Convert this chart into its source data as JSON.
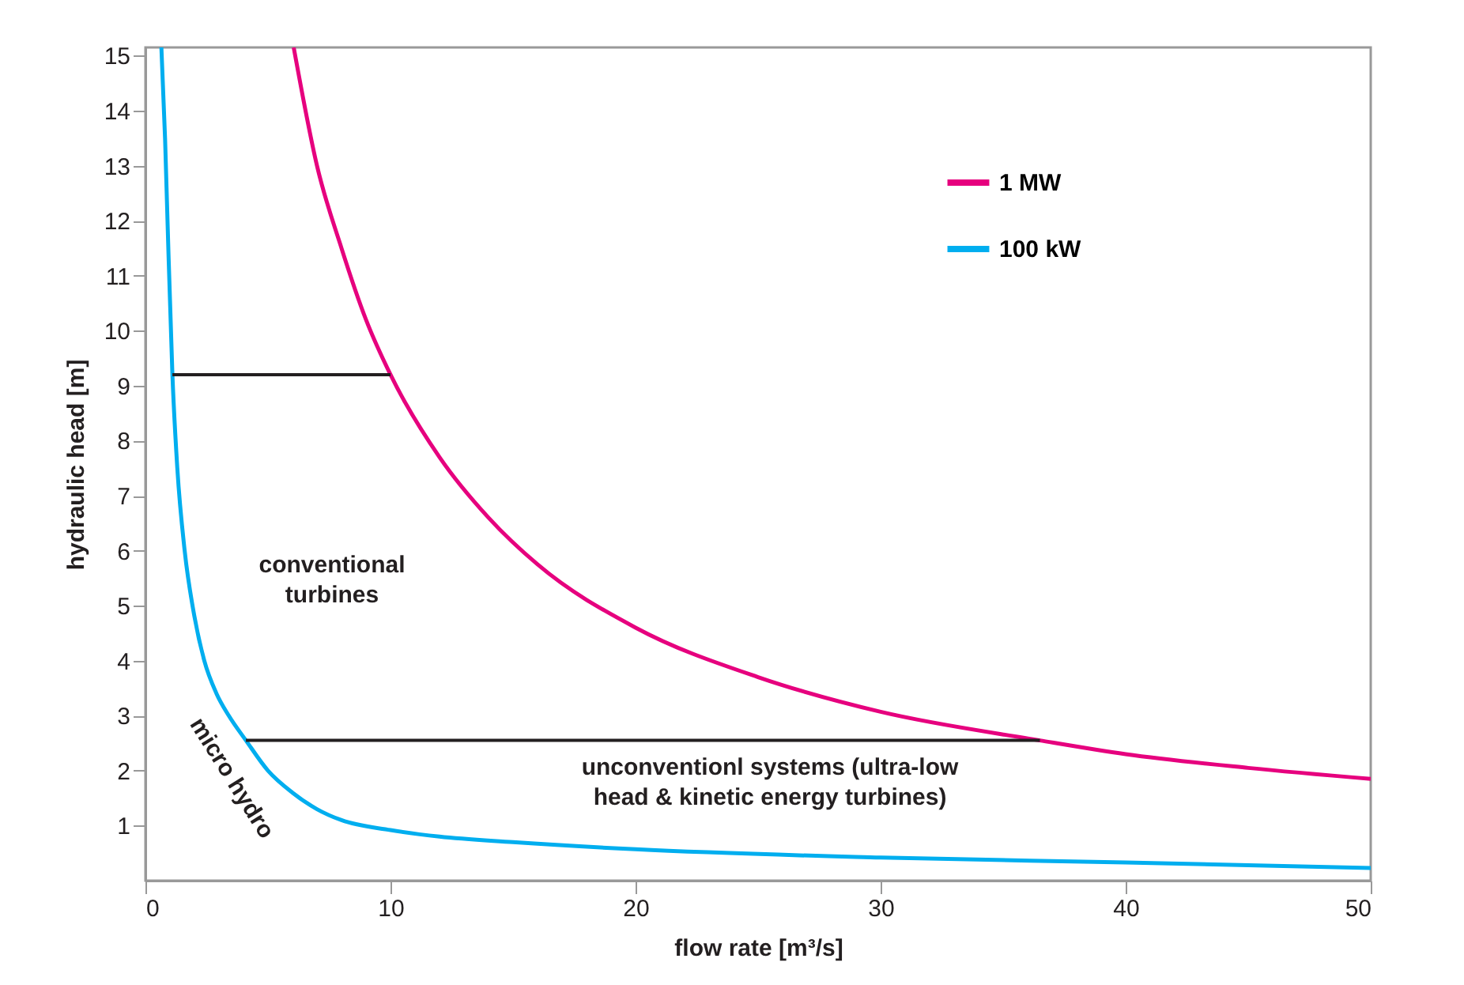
{
  "chart_data": {
    "type": "line",
    "xlabel": "flow rate [m³/s]",
    "ylabel": "hydraulic head [m]",
    "xlim": [
      0,
      50
    ],
    "ylim": [
      0,
      15.15
    ],
    "xticks": [
      0,
      10,
      20,
      30,
      40,
      50
    ],
    "yticks": [
      1,
      2,
      3,
      4,
      5,
      6,
      7,
      8,
      9,
      10,
      11,
      12,
      13,
      14,
      15
    ],
    "grid": false,
    "legend": "top right",
    "marker": "none",
    "line_style": "solid",
    "series": [
      {
        "name": "1 MW",
        "color": "#e6007e",
        "x": [
          6.05,
          7,
          8,
          9,
          10,
          12,
          14,
          16,
          20,
          25,
          30,
          36.5,
          40,
          45,
          50
        ],
        "values": [
          15.15,
          13,
          11.5,
          10.2,
          9.2,
          7.7,
          6.6,
          5.75,
          4.6,
          3.7,
          3.07,
          2.55,
          2.3,
          2.05,
          1.85
        ]
      },
      {
        "name": "100 kW",
        "color": "#00aeef",
        "x": [
          0.65,
          0.8,
          0.9,
          1.1,
          1.3,
          1.6,
          2,
          2.4,
          2.9,
          3.4,
          4.1,
          5,
          6,
          7,
          8,
          10,
          12,
          15,
          20,
          30,
          40,
          50
        ],
        "values": [
          15.15,
          13.5,
          12,
          9.2,
          7.5,
          6,
          4.8,
          4,
          3.4,
          3,
          2.55,
          2,
          1.6,
          1.3,
          1.1,
          0.92,
          0.8,
          0.7,
          0.57,
          0.42,
          0.33,
          0.23
        ]
      },
      {
        "color": "#231f20",
        "x": [
          1.1,
          10
        ],
        "values": [
          9.2,
          9.2
        ]
      },
      {
        "color": "#231f20",
        "x": [
          4.1,
          36.5
        ],
        "values": [
          2.55,
          2.55
        ]
      }
    ],
    "annotations": [
      "conventional\nturbines",
      "unconventionl systems (ultra-low\nhead & kinetic energy turbines)",
      "micro hydro"
    ]
  }
}
